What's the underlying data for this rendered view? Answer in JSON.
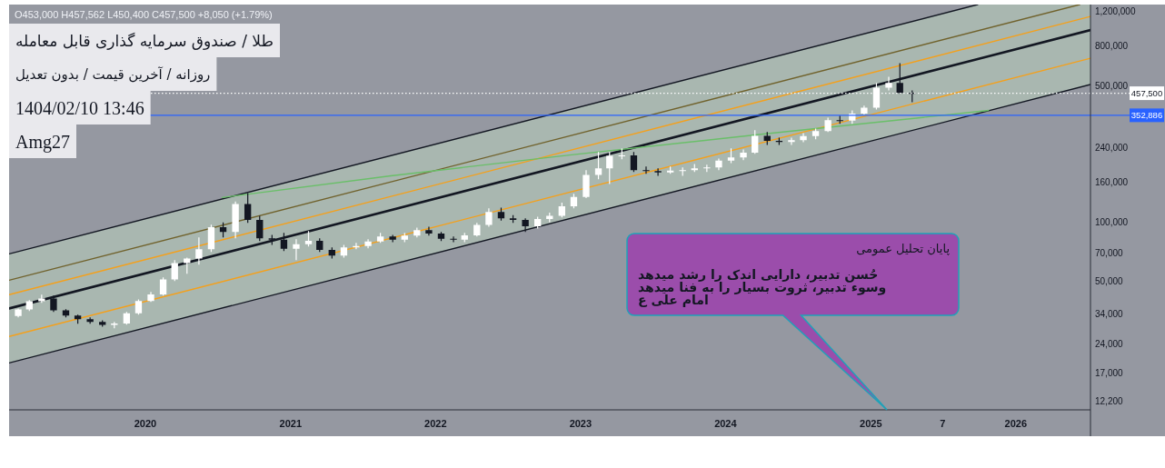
{
  "chart_data": {
    "type": "candlestick",
    "title": "طلا / صندوق سرمایه گذاری قابل معامله",
    "subtitle": "روزانه / آخرین قیمت / بدون تعدیل",
    "x": [
      "2019-02-15",
      "2019-03-15",
      "2019-04-15",
      "2019-05-15",
      "2019-06-15",
      "2019-07-15",
      "2019-08-15",
      "2019-09-15",
      "2019-10-15",
      "2019-11-15",
      "2019-12-15",
      "2020-01-15",
      "2020-02-15",
      "2020-03-15",
      "2020-04-15",
      "2020-05-15",
      "2020-06-15",
      "2020-07-15",
      "2020-08-15",
      "2020-09-15",
      "2020-10-15",
      "2020-11-15",
      "2020-12-15",
      "2021-01-15",
      "2021-02-15",
      "2021-03-15",
      "2021-04-15",
      "2021-05-15",
      "2021-06-15",
      "2021-07-15",
      "2021-08-15",
      "2021-09-15",
      "2021-10-15",
      "2021-11-15",
      "2021-12-15",
      "2022-01-15",
      "2022-02-15",
      "2022-03-15",
      "2022-04-15",
      "2022-05-15",
      "2022-06-15",
      "2022-07-15",
      "2022-08-15",
      "2022-09-15",
      "2022-10-15",
      "2022-11-15",
      "2022-12-15",
      "2023-01-15",
      "2023-02-15",
      "2023-03-15",
      "2023-04-15",
      "2023-05-15",
      "2023-06-15",
      "2023-07-15",
      "2023-08-15",
      "2023-09-15",
      "2023-10-15",
      "2023-11-15",
      "2023-12-15",
      "2024-01-15",
      "2024-02-15",
      "2024-03-15",
      "2024-04-15",
      "2024-05-15",
      "2024-06-15",
      "2024-07-15",
      "2024-08-15",
      "2024-09-15",
      "2024-10-15",
      "2024-11-15",
      "2024-12-15",
      "2025-01-15",
      "2025-02-15",
      "2025-03-15",
      "2025-04-15"
    ],
    "ohlc": [
      [
        33200,
        36300,
        32700,
        35900
      ],
      [
        35900,
        40000,
        35200,
        39500
      ],
      [
        39500,
        42700,
        38800,
        40800
      ],
      [
        40800,
        42200,
        34800,
        35500
      ],
      [
        35500,
        36000,
        32700,
        33400
      ],
      [
        33400,
        33700,
        30300,
        32000
      ],
      [
        32000,
        32700,
        30300,
        31000
      ],
      [
        31000,
        31600,
        29300,
        29900
      ],
      [
        29900,
        31000,
        28700,
        30400
      ],
      [
        30400,
        34800,
        30000,
        34300
      ],
      [
        34300,
        40400,
        33700,
        39600
      ],
      [
        39600,
        44100,
        39200,
        42800
      ],
      [
        42800,
        52300,
        42200,
        51100
      ],
      [
        51100,
        64100,
        50100,
        62000
      ],
      [
        62000,
        66100,
        54600,
        65400
      ],
      [
        65400,
        83700,
        60700,
        72900
      ],
      [
        72900,
        97200,
        70600,
        94500
      ],
      [
        94500,
        100000,
        83700,
        89300
      ],
      [
        89300,
        128000,
        82800,
        124000
      ],
      [
        124000,
        141000,
        99300,
        103000
      ],
      [
        103000,
        108000,
        80200,
        82800
      ],
      [
        82800,
        86400,
        76800,
        81500
      ],
      [
        81500,
        88300,
        71300,
        73200
      ],
      [
        73200,
        81900,
        64100,
        77300
      ],
      [
        77300,
        90200,
        75200,
        80400
      ],
      [
        80400,
        82800,
        70600,
        72400
      ],
      [
        72400,
        74400,
        65400,
        67600
      ],
      [
        67600,
        76800,
        66100,
        74400
      ],
      [
        74400,
        78500,
        72900,
        75600
      ],
      [
        75600,
        81900,
        73600,
        79800
      ],
      [
        79800,
        88300,
        78500,
        84600
      ],
      [
        84600,
        86400,
        79300,
        81500
      ],
      [
        81500,
        88300,
        79300,
        85500
      ],
      [
        85500,
        94100,
        83700,
        91200
      ],
      [
        91200,
        95100,
        85500,
        87600
      ],
      [
        87600,
        89300,
        80200,
        82400
      ],
      [
        82400,
        84600,
        79300,
        81500
      ],
      [
        81500,
        88300,
        79300,
        85800
      ],
      [
        85800,
        99300,
        84600,
        97000
      ],
      [
        97000,
        118000,
        95100,
        113000
      ],
      [
        113000,
        119000,
        102000,
        105000
      ],
      [
        105000,
        109000,
        99300,
        103000
      ],
      [
        103000,
        105000,
        89300,
        95600
      ],
      [
        95600,
        107000,
        93100,
        104000
      ],
      [
        104000,
        112000,
        100000,
        108000
      ],
      [
        108000,
        126000,
        106000,
        121000
      ],
      [
        121000,
        140000,
        118000,
        135000
      ],
      [
        135000,
        185000,
        133000,
        175000
      ],
      [
        175000,
        229000,
        166000,
        189000
      ],
      [
        189000,
        229000,
        157000,
        219000
      ],
      [
        219000,
        239000,
        210000,
        220000
      ],
      [
        220000,
        229000,
        181000,
        185000
      ],
      [
        185000,
        193000,
        177000,
        183000
      ],
      [
        183000,
        189000,
        173000,
        180000
      ],
      [
        180000,
        193000,
        177000,
        184000
      ],
      [
        184000,
        191000,
        173000,
        185000
      ],
      [
        185000,
        199000,
        181000,
        189000
      ],
      [
        189000,
        197000,
        181000,
        191000
      ],
      [
        191000,
        212000,
        185000,
        207000
      ],
      [
        207000,
        239000,
        201000,
        215000
      ],
      [
        215000,
        236000,
        208000,
        227000
      ],
      [
        227000,
        296000,
        224000,
        277000
      ],
      [
        277000,
        290000,
        249000,
        261000
      ],
      [
        261000,
        271000,
        249000,
        258000
      ],
      [
        258000,
        271000,
        249000,
        263000
      ],
      [
        263000,
        286000,
        257000,
        276000
      ],
      [
        276000,
        302000,
        266000,
        293000
      ],
      [
        293000,
        343000,
        290000,
        333000
      ],
      [
        333000,
        351000,
        319000,
        331000
      ],
      [
        331000,
        374000,
        319000,
        360000
      ],
      [
        360000,
        395000,
        355000,
        386000
      ],
      [
        386000,
        516000,
        378000,
        489000
      ],
      [
        489000,
        556000,
        473000,
        516000
      ],
      [
        516000,
        652000,
        454000,
        459000
      ],
      [
        459000,
        473000,
        412000,
        457500
      ]
    ],
    "series": [
      {
        "type": "line",
        "color": "#131722",
        "x": [
          "2019-01-23",
          "2025-09-27",
          "2026-07-08"
        ],
        "values": [
          36300,
          684000,
          963000
        ],
        "lower": [
          19100,
          360000,
          507000
        ],
        "upper": [
          69000,
          1300000,
          1300000
        ]
      },
      {
        "type": "line",
        "color": "#131722",
        "x": [
          "2019-01-23",
          "2025-09-27"
        ],
        "values": [
          69000,
          1300000
        ]
      },
      {
        "type": "line",
        "color": "#70622c",
        "x": [
          "2019-01-23",
          "2026-06-11"
        ],
        "values": [
          50600,
          1300000
        ]
      },
      {
        "type": "line",
        "color": "#f5a01a",
        "x": [
          "2019-01-23",
          "2026-07-08"
        ],
        "values": [
          42700,
          1130000
        ]
      },
      {
        "type": "line",
        "color": "#f5a01a",
        "x": [
          "2019-01-23",
          "2026-07-08"
        ],
        "values": [
          26100,
          691000
        ]
      },
      {
        "type": "line",
        "color": "#131722",
        "x": [
          "2019-01-23",
          "2026-07-08"
        ],
        "values": [
          19100,
          507000
        ]
      },
      {
        "type": "line",
        "color": "#6abf69",
        "x": [
          "2020-07-13",
          "2021-09-10",
          "2022-12-04",
          "2024-04-05",
          "2025-03-07",
          "2025-10-24"
        ],
        "values": [
          134000,
          173000,
          221000,
          283000,
          333000,
          374000
        ]
      }
    ],
    "xlim": [
      "2019-01-23",
      "2026-07-08"
    ],
    "xticks": [
      {
        "value": "2020-01-01",
        "label": "2020"
      },
      {
        "value": "2021-01-01",
        "label": "2021"
      },
      {
        "value": "2022-01-01",
        "label": "2022"
      },
      {
        "value": "2023-01-01",
        "label": "2023"
      },
      {
        "value": "2024-01-01",
        "label": "2024"
      },
      {
        "value": "2025-01-01",
        "label": "2025"
      },
      {
        "value": "2025-07-01",
        "label": "7"
      },
      {
        "value": "2026-01-01",
        "label": "2026"
      }
    ],
    "ylim": [
      11000,
      1300000
    ],
    "yticks": [
      {
        "value": 1200000,
        "label": "1,200,000"
      },
      {
        "value": 800000,
        "label": "800,000"
      },
      {
        "value": 500000,
        "label": "500,000"
      },
      {
        "value": 240000,
        "label": "240,000"
      },
      {
        "value": 160000,
        "label": "160,000"
      },
      {
        "value": 100000,
        "label": "100,000"
      },
      {
        "value": 70000,
        "label": "70,000"
      },
      {
        "value": 50000,
        "label": "50,000"
      },
      {
        "value": 34000,
        "label": "34,000"
      },
      {
        "value": 24000,
        "label": "24,000"
      },
      {
        "value": 17000,
        "label": "17,000"
      },
      {
        "value": 12200,
        "label": "12,200"
      }
    ],
    "log": true,
    "ref_lines": [
      {
        "axis": "y",
        "value": 457500,
        "label": "457,500",
        "color": "#ffffff",
        "line_style": "dotted"
      },
      {
        "axis": "y",
        "value": 352886,
        "label": "352,886",
        "color": "#2962ff"
      }
    ],
    "annotations": [
      "O453,000 H457,562 L450,400 C457,500 +8,050 (+1.79%)",
      "1404/02/10 13:46",
      "Amg27",
      "پایان تحلیل عمومی",
      "حُسن تدبیر، دارایی اندک را رشد میدهد",
      "وسوء تدبیر، ثروت بسیار را به فنا میدهد",
      "امام علی ع"
    ]
  }
}
